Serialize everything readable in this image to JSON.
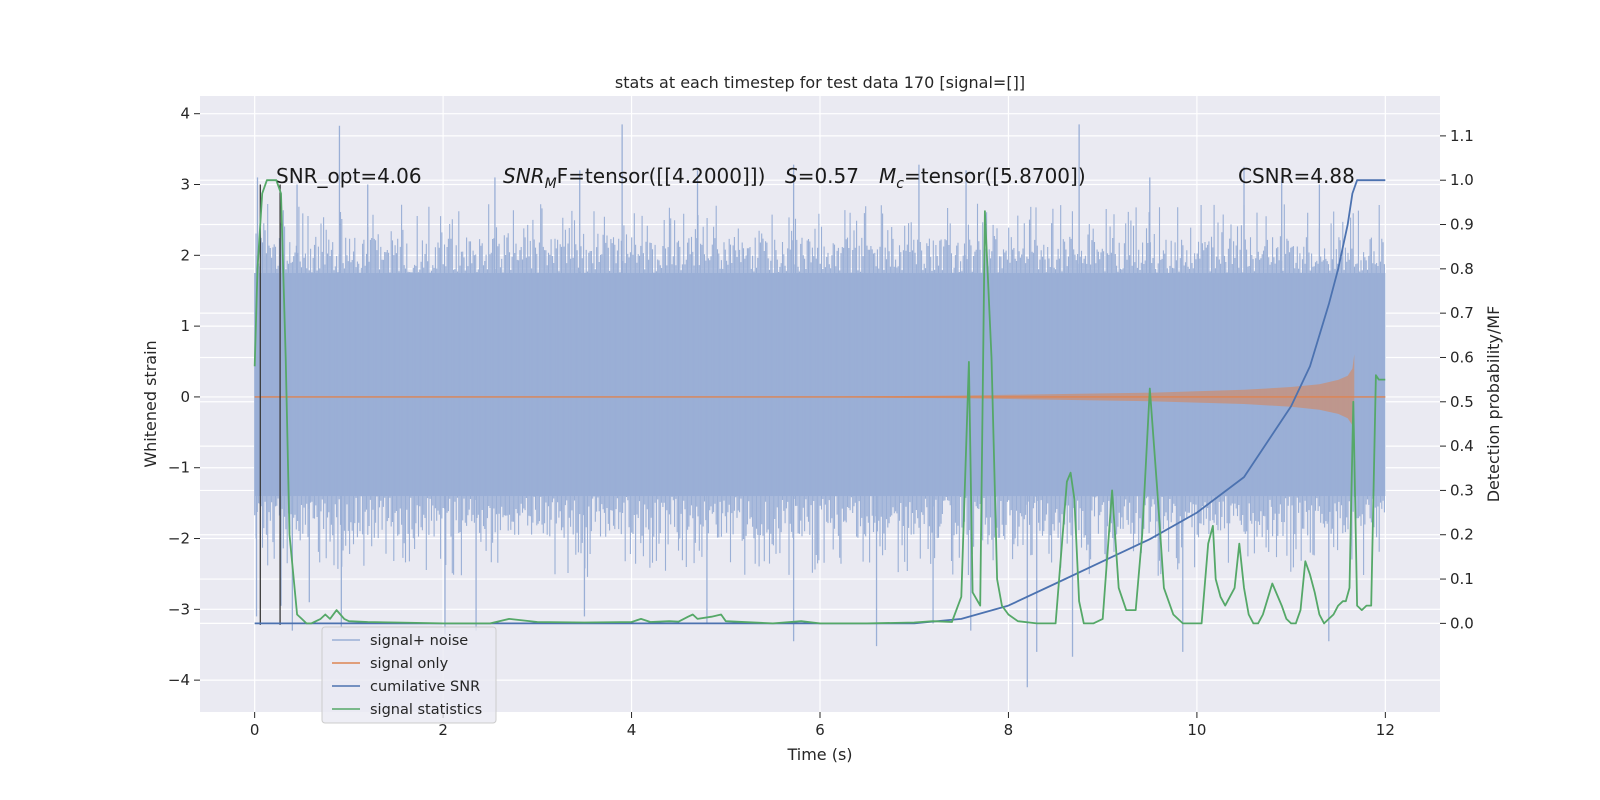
{
  "colors": {
    "background": "#eaeaf2",
    "grid": "#ffffff",
    "noise": "#9aafd6",
    "signal": "#dd8452",
    "cum_snr": "#4c72b0",
    "stats": "#55a868"
  },
  "chart_data": {
    "type": "line",
    "title": "stats at each timestep for test data 170 [signal=[]]",
    "xlabel": "Time (s)",
    "ylabel_left": "Whitened strain",
    "ylabel_right": "Detection probability/MF",
    "xlim": [
      -0.58,
      12.58
    ],
    "ylim_left": [
      -4.45,
      4.25
    ],
    "ylim_right": [
      -0.2,
      1.19
    ],
    "x_ticks": [
      "0",
      "2",
      "4",
      "6",
      "8",
      "10",
      "12"
    ],
    "x_tick_values": [
      0,
      2,
      4,
      6,
      8,
      10,
      12
    ],
    "y_ticks_left": [
      "−4",
      "−3",
      "−2",
      "−1",
      "0",
      "1",
      "2",
      "3",
      "4"
    ],
    "y_tick_values_left": [
      -4,
      -3,
      -2,
      -1,
      0,
      1,
      2,
      3,
      4
    ],
    "y_ticks_right": [
      "0.0",
      "0.1",
      "0.2",
      "0.3",
      "0.4",
      "0.5",
      "0.6",
      "0.7",
      "0.8",
      "0.9",
      "1.0",
      "1.1"
    ],
    "y_tick_values_right": [
      0.0,
      0.1,
      0.2,
      0.3,
      0.4,
      0.5,
      0.6,
      0.7,
      0.8,
      0.9,
      1.0,
      1.1
    ],
    "annotations": {
      "snr_opt": "SNR_opt=4.06",
      "snr_mf_sym": "SNR",
      "snr_mf_sub": "M",
      "snr_mf_tail": "F=tensor([[4.2000]])",
      "s_sym": "S",
      "s_tail": "=0.57",
      "mc_sym": "M",
      "mc_sub": "c",
      "mc_tail": "=tensor([5.8700])",
      "csnr": "CSNR=4.88"
    },
    "legend": {
      "placement": "lower-left",
      "entries": [
        "signal+ noise",
        "signal only",
        "cumilative SNR",
        "signal statistics"
      ]
    },
    "series": [
      {
        "name": "signal+ noise",
        "axis": "left",
        "kind": "noise_band",
        "x_range": [
          0,
          12
        ],
        "core_band": [
          -1.4,
          1.75
        ],
        "typical_extremes": [
          -2.4,
          2.6
        ],
        "spikes": [
          {
            "x": 0.9,
            "y": 3.83
          },
          {
            "x": 0.03,
            "y": 3.1
          },
          {
            "x": 0.45,
            "y": 3.0
          },
          {
            "x": 1.2,
            "y": 3.0
          },
          {
            "x": 2.55,
            "y": 3.1
          },
          {
            "x": 3.45,
            "y": 3.2
          },
          {
            "x": 3.9,
            "y": 3.85
          },
          {
            "x": 4.7,
            "y": 3.2
          },
          {
            "x": 5.72,
            "y": 3.28
          },
          {
            "x": 7.05,
            "y": 3.28
          },
          {
            "x": 7.55,
            "y": 3.2
          },
          {
            "x": 8.75,
            "y": 3.85
          },
          {
            "x": 9.5,
            "y": 3.1
          },
          {
            "x": 10.5,
            "y": 3.25
          },
          {
            "x": 10.9,
            "y": 3.1
          },
          {
            "x": 11.3,
            "y": 3.0
          },
          {
            "x": 0.02,
            "y": -3.1
          },
          {
            "x": 0.28,
            "y": -2.95
          },
          {
            "x": 0.4,
            "y": -3.3
          },
          {
            "x": 0.58,
            "y": -2.9
          },
          {
            "x": 0.92,
            "y": -3.25
          },
          {
            "x": 2.02,
            "y": -3.35
          },
          {
            "x": 2.35,
            "y": -3.3
          },
          {
            "x": 3.5,
            "y": -3.1
          },
          {
            "x": 4.8,
            "y": -3.2
          },
          {
            "x": 5.72,
            "y": -3.45
          },
          {
            "x": 6.6,
            "y": -3.52
          },
          {
            "x": 7.2,
            "y": -3.2
          },
          {
            "x": 7.6,
            "y": -3.3
          },
          {
            "x": 8.2,
            "y": -4.1
          },
          {
            "x": 8.3,
            "y": -3.6
          },
          {
            "x": 8.68,
            "y": -3.67
          },
          {
            "x": 9.85,
            "y": -3.6
          },
          {
            "x": 11.4,
            "y": -3.45
          }
        ]
      },
      {
        "name": "signal only",
        "axis": "left",
        "kind": "chirp_envelope",
        "x": [
          0,
          6,
          7.5,
          8.5,
          9.5,
          10,
          10.5,
          11,
          11.3,
          11.5,
          11.6,
          11.65,
          11.67
        ],
        "amplitude": [
          0.0,
          0.005,
          0.02,
          0.04,
          0.06,
          0.08,
          0.1,
          0.14,
          0.18,
          0.24,
          0.3,
          0.4,
          0.6
        ]
      },
      {
        "name": "cumilative SNR",
        "axis": "right",
        "x": [
          0,
          7.0,
          7.5,
          8.0,
          8.5,
          9.0,
          9.5,
          10.0,
          10.5,
          11.0,
          11.2,
          11.4,
          11.5,
          11.6,
          11.65,
          11.7,
          12.0
        ],
        "values": [
          0.0,
          0.0,
          0.01,
          0.04,
          0.09,
          0.14,
          0.19,
          0.25,
          0.33,
          0.49,
          0.58,
          0.72,
          0.8,
          0.9,
          0.97,
          1.0,
          1.0
        ]
      },
      {
        "name": "signal statistics",
        "axis": "right",
        "x": [
          0.0,
          0.03,
          0.08,
          0.13,
          0.18,
          0.23,
          0.28,
          0.33,
          0.37,
          0.45,
          0.5,
          0.55,
          0.6,
          0.7,
          0.75,
          0.8,
          0.87,
          0.95,
          1.0,
          1.2,
          1.5,
          2.0,
          2.5,
          2.7,
          3.0,
          3.5,
          4.0,
          4.1,
          4.2,
          4.4,
          4.5,
          4.6,
          4.65,
          4.7,
          4.85,
          4.95,
          5.0,
          5.5,
          5.8,
          6.0,
          6.5,
          7.0,
          7.2,
          7.4,
          7.5,
          7.58,
          7.62,
          7.7,
          7.75,
          7.82,
          7.88,
          7.93,
          8.0,
          8.1,
          8.3,
          8.5,
          8.62,
          8.66,
          8.7,
          8.75,
          8.8,
          8.9,
          9.0,
          9.1,
          9.17,
          9.25,
          9.35,
          9.42,
          9.5,
          9.58,
          9.65,
          9.75,
          9.85,
          9.95,
          10.05,
          10.12,
          10.17,
          10.2,
          10.25,
          10.3,
          10.4,
          10.45,
          10.5,
          10.55,
          10.6,
          10.65,
          10.7,
          10.8,
          10.9,
          10.95,
          11.0,
          11.05,
          11.1,
          11.15,
          11.2,
          11.25,
          11.3,
          11.35,
          11.4,
          11.45,
          11.5,
          11.55,
          11.58,
          11.62,
          11.66,
          11.7,
          11.75,
          11.8,
          11.85,
          11.9,
          11.93,
          12.0
        ],
        "values": [
          0.58,
          0.8,
          0.97,
          1.0,
          1.0,
          1.0,
          0.97,
          0.6,
          0.2,
          0.02,
          0.01,
          0.0,
          0.0,
          0.01,
          0.02,
          0.01,
          0.03,
          0.01,
          0.005,
          0.003,
          0.002,
          0.0,
          0.0,
          0.01,
          0.003,
          0.002,
          0.003,
          0.01,
          0.003,
          0.005,
          0.004,
          0.015,
          0.02,
          0.01,
          0.015,
          0.02,
          0.005,
          0.0,
          0.005,
          0.0,
          0.0,
          0.002,
          0.005,
          0.003,
          0.06,
          0.59,
          0.07,
          0.04,
          0.93,
          0.6,
          0.1,
          0.04,
          0.02,
          0.005,
          0.0,
          0.0,
          0.32,
          0.34,
          0.28,
          0.05,
          0.0,
          0.0,
          0.01,
          0.3,
          0.08,
          0.03,
          0.03,
          0.2,
          0.53,
          0.3,
          0.08,
          0.02,
          0.0,
          0.0,
          0.0,
          0.18,
          0.22,
          0.1,
          0.06,
          0.04,
          0.08,
          0.18,
          0.08,
          0.02,
          0.0,
          0.0,
          0.02,
          0.09,
          0.04,
          0.01,
          0.0,
          0.0,
          0.03,
          0.14,
          0.11,
          0.07,
          0.02,
          0.0,
          0.01,
          0.02,
          0.04,
          0.05,
          0.05,
          0.08,
          0.5,
          0.04,
          0.03,
          0.04,
          0.04,
          0.56,
          0.55,
          0.55
        ]
      }
    ],
    "vertical_lines": [
      {
        "x": 0.06,
        "from": -3.22,
        "to": 3.0
      },
      {
        "x": 0.27,
        "from": -3.22,
        "to": 3.0
      }
    ]
  }
}
